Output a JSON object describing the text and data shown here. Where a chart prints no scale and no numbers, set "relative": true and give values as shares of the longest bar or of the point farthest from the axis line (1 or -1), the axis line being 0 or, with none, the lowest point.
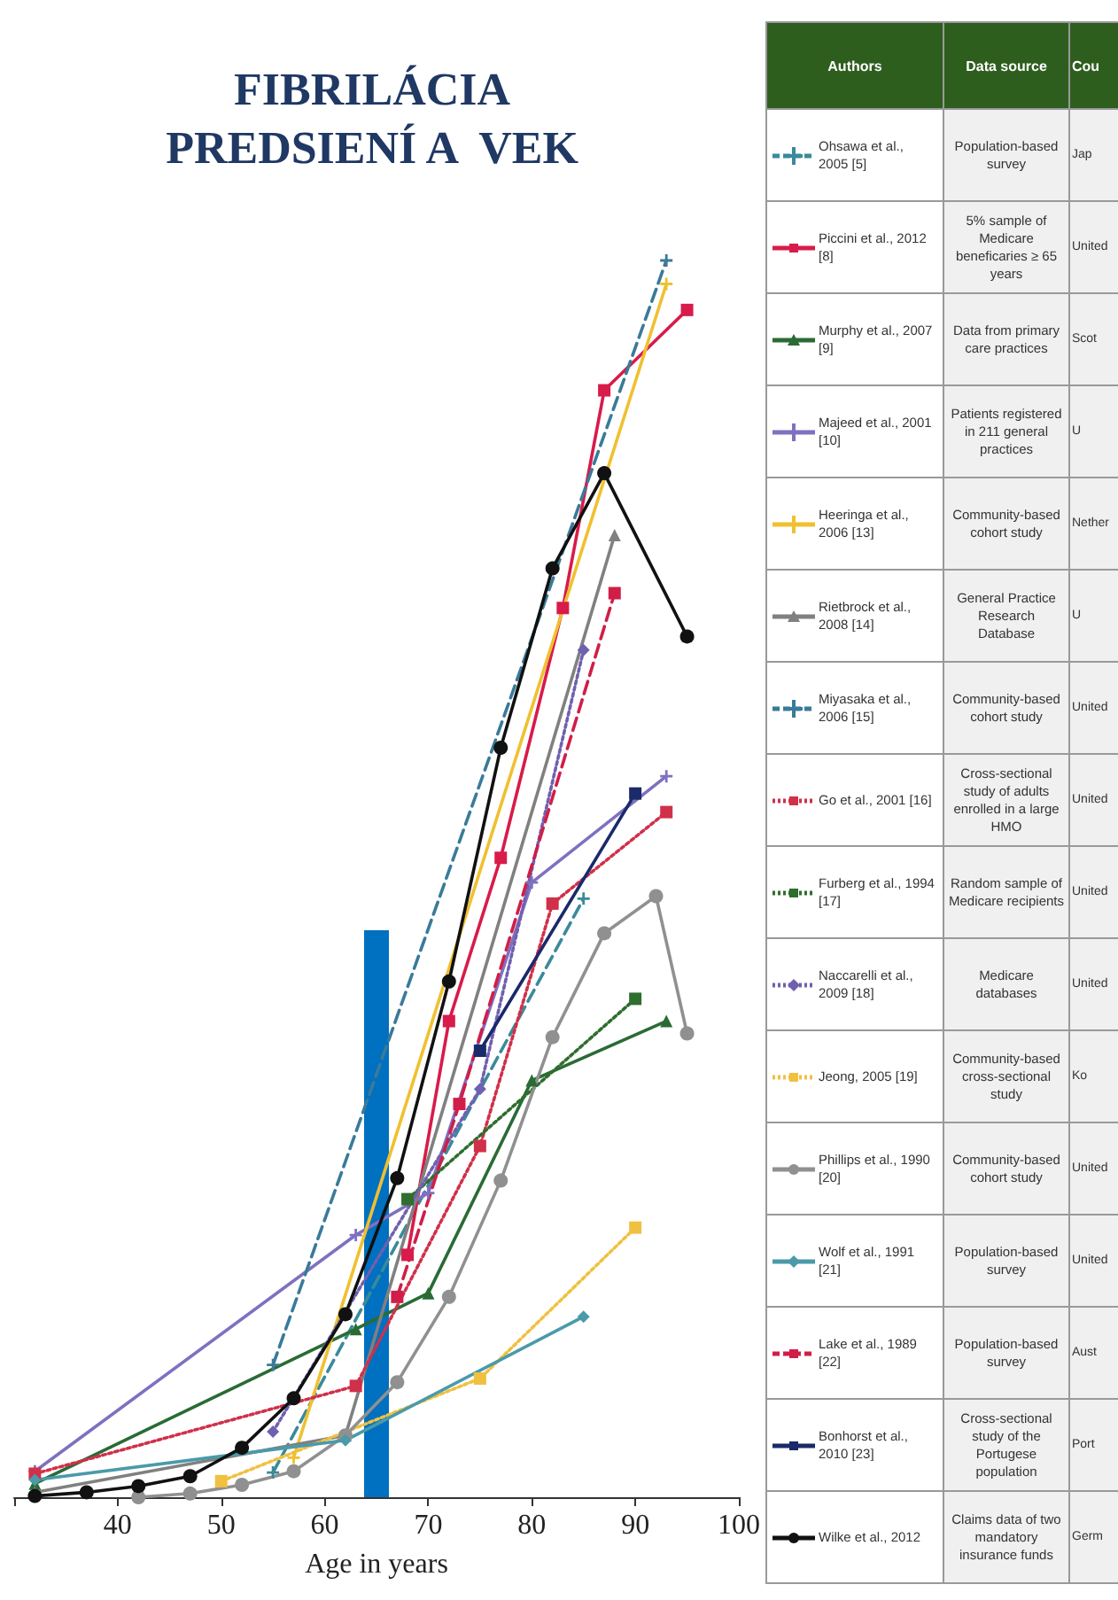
{
  "chart_data": {
    "type": "line",
    "title": "FIBRILÁCIA PREDSIENÍ A  VEK",
    "xlabel": "Age in years",
    "relative": true,
    "grid": false,
    "legend": "right",
    "bands": [
      {
        "axis": "x",
        "from": 63.8,
        "to": 66.2,
        "color": "#0070c0"
      }
    ],
    "xlim": [
      30,
      100
    ],
    "xticks": [
      {
        "value": 30,
        "label": null
      },
      40,
      50,
      60,
      70,
      80,
      90,
      100
    ],
    "annotations": [
      "Authors",
      "Data source",
      "Cou",
      "Population-based survey",
      "Jap",
      "5% sample of Medicare beneficaries ≥ 65 years",
      "United",
      "Data from primary care practices",
      "Scot",
      "Patients registered in 211 general practices",
      "U",
      "Community-based cohort study",
      "Nether",
      "General Practice Research Database",
      "U",
      "Community-based cohort study",
      "United",
      "Cross-sectional study of adults  enrolled in a large HMO",
      "United",
      "Random sample of Medicare recipients",
      "United",
      "Medicare databases",
      "United",
      "Community-based cross-sectional study",
      "Ko",
      "Community-based cohort study",
      "United",
      "Population-based survey",
      "United",
      "Population-based survey",
      "Aust",
      "Cross-sectional study of the Portugese population",
      "Port",
      "Claims data of two mandatory insurance funds",
      "Germ"
    ],
    "series": [
      {
        "name": "Ohsawa et al., 2005 [5]",
        "color": "#3a8a9a",
        "marker": "cross",
        "line_style": "dashed",
        "x": [
          55,
          85
        ],
        "values": [
          0.02,
          0.484
        ]
      },
      {
        "name": "Piccini et al., 2012 [8]",
        "color": "#d81b4a",
        "marker": "square",
        "line_style": "solid",
        "x": [
          68,
          72,
          77,
          83,
          87,
          95
        ],
        "values": [
          0.196,
          0.385,
          0.517,
          0.719,
          0.895,
          0.96
        ]
      },
      {
        "name": "Murphy et al., 2007 [9]",
        "color": "#2a6b35",
        "marker": "triangle",
        "line_style": "solid",
        "x": [
          32,
          63,
          70,
          80,
          93
        ],
        "values": [
          0.011,
          0.136,
          0.165,
          0.337,
          0.385
        ]
      },
      {
        "name": "Majeed et al., 2001 [10]",
        "color": "#8070c0",
        "marker": "cross",
        "line_style": "solid",
        "x": [
          32,
          63,
          70,
          80,
          93
        ],
        "values": [
          0.021,
          0.212,
          0.246,
          0.497,
          0.583
        ]
      },
      {
        "name": "Heeringa et al., 2006 [13]",
        "color": "#f0c030",
        "marker": "cross",
        "line_style": "solid",
        "x": [
          57,
          93
        ],
        "values": [
          0.032,
          0.981
        ]
      },
      {
        "name": "Rietbrock et al., 2008 [14]",
        "color": "#808080",
        "marker": "triangle",
        "line_style": "solid",
        "x": [
          32,
          62,
          88
        ],
        "values": [
          0.004,
          0.05,
          0.778
        ]
      },
      {
        "name": "Miyasaka et al., 2006 [15]",
        "color": "#3a7a9a",
        "marker": "cross",
        "line_style": "dashed",
        "x": [
          55,
          93
        ],
        "values": [
          0.107,
          1
        ]
      },
      {
        "name": "Go et al., 2001 [16]",
        "color": "#d0304a",
        "marker": "square",
        "line_style": "dotted",
        "x": [
          32,
          63,
          75,
          82,
          93
        ],
        "values": [
          0.019,
          0.09,
          0.284,
          0.48,
          0.554
        ]
      },
      {
        "name": "Furberg et al., 1994 [17]",
        "color": "#2e6e2e",
        "marker": "square",
        "line_style": "dotted",
        "x": [
          68,
          90
        ],
        "values": [
          0.241,
          0.403
        ]
      },
      {
        "name": "Naccarelli et al., 2009 [18]",
        "color": "#7060b0",
        "marker": "diamond",
        "line_style": "dotted",
        "x": [
          55,
          75,
          85
        ],
        "values": [
          0.053,
          0.33,
          0.685
        ]
      },
      {
        "name": "Jeong, 2005 [19]",
        "color": "#f0c040",
        "marker": "square",
        "line_style": "dotted",
        "x": [
          50,
          75,
          90
        ],
        "values": [
          0.013,
          0.096,
          0.218
        ]
      },
      {
        "name": "Phillips et al., 1990 [20]",
        "color": "#909090",
        "marker": "circle",
        "line_style": "solid",
        "x": [
          42,
          47,
          52,
          57,
          62,
          67,
          72,
          77,
          82,
          87,
          92,
          95
        ],
        "values": [
          0,
          0.003,
          0.01,
          0.021,
          0.05,
          0.093,
          0.162,
          0.256,
          0.372,
          0.456,
          0.486,
          0.375
        ]
      },
      {
        "name": "Wolf et al., 1991 [21]",
        "color": "#4a9aaa",
        "marker": "diamond",
        "line_style": "solid",
        "x": [
          32,
          62,
          85
        ],
        "values": [
          0.014,
          0.046,
          0.146
        ]
      },
      {
        "name": "Lake et al., 1989 [22]",
        "color": "#d01e48",
        "marker": "square",
        "line_style": "dashed",
        "x": [
          67,
          73,
          88
        ],
        "values": [
          0.162,
          0.318,
          0.731
        ]
      },
      {
        "name": "Bonhorst et al., 2010 [23]",
        "color": "#1a2a6a",
        "marker": "square",
        "line_style": "solid",
        "x": [
          75,
          90
        ],
        "values": [
          0.361,
          0.569
        ]
      },
      {
        "name": "Wilke et al., 2012",
        "color": "#111111",
        "marker": "circle",
        "line_style": "solid",
        "x": [
          32,
          37,
          42,
          47,
          52,
          57,
          62,
          67,
          72,
          77,
          82,
          87,
          95
        ],
        "values": [
          0.001,
          0.004,
          0.009,
          0.017,
          0.04,
          0.08,
          0.148,
          0.258,
          0.417,
          0.606,
          0.751,
          0.828,
          0.696
        ]
      }
    ]
  }
}
